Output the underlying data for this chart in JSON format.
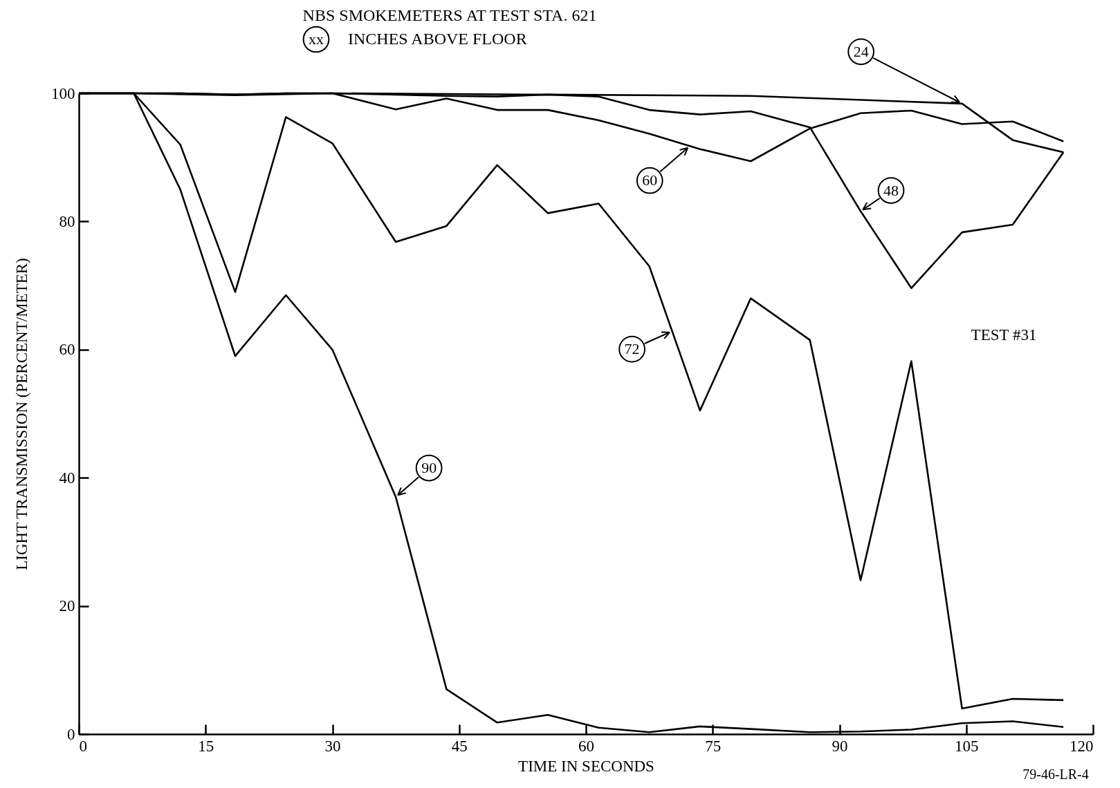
{
  "chart_data": {
    "type": "line",
    "title": "NBS SMOKEMETERS AT TEST STA. 621",
    "subtitle": "INCHES ABOVE FLOOR",
    "legend_title": "xx",
    "xlabel": "TIME IN SECONDS",
    "ylabel": "LIGHT TRANSMISSION  (PERCENT/METER)",
    "x": [
      0,
      6.5,
      12,
      18.5,
      24.5,
      30,
      37.5,
      43.5,
      49.5,
      55.5,
      61.5,
      67.5,
      73.5,
      79.5,
      86.5,
      92.5,
      98.5,
      104.5,
      110.5,
      116.5
    ],
    "series": [
      {
        "name": "24",
        "color": "#000000",
        "x": [
          0,
          6.5,
          18.5,
          30,
          55.5,
          79.5,
          104.5,
          110.5,
          116.5
        ],
        "values": [
          100,
          100,
          99.7,
          100,
          99.8,
          99.6,
          98.4,
          92.7,
          90.8
        ]
      },
      {
        "name": "48",
        "color": "#000000",
        "values": [
          100,
          100,
          100,
          99.8,
          100,
          100,
          99.8,
          99.6,
          99.5,
          99.8,
          99.5,
          97.4,
          96.7,
          97.2,
          94.7,
          81.6,
          69.6,
          78.3,
          79.5,
          90.8
        ]
      },
      {
        "name": "60",
        "color": "#000000",
        "values": [
          100,
          100,
          100,
          99.8,
          100,
          100,
          97.5,
          99.2,
          97.4,
          97.4,
          95.8,
          93.7,
          91.3,
          89.4,
          94.5,
          96.9,
          97.3,
          95.2,
          95.6,
          92.5
        ]
      },
      {
        "name": "72",
        "color": "#000000",
        "values": [
          100,
          100,
          92,
          69,
          96.3,
          92.2,
          76.8,
          79.3,
          88.8,
          81.3,
          82.8,
          73,
          50.5,
          68,
          61.5,
          24,
          58.2,
          4,
          5.5,
          5.3
        ]
      },
      {
        "name": "90",
        "color": "#000000",
        "values": [
          100,
          100,
          85,
          59,
          68.5,
          60,
          37,
          7,
          1.8,
          3,
          1,
          0.3,
          1.2,
          0.8,
          0.3,
          0.4,
          0.7,
          1.7,
          2,
          1.1
        ]
      }
    ],
    "xlim": [
      0,
      120
    ],
    "xticks": [
      0,
      15,
      30,
      45,
      60,
      75,
      90,
      105,
      120
    ],
    "ylim": [
      0,
      100
    ],
    "yticks": [
      0,
      20,
      40,
      60,
      80,
      100
    ],
    "grid": false,
    "legend": false,
    "marker": "none",
    "line_style": "solid",
    "annotations": [
      "TEST #31",
      "79-46-LR-4"
    ]
  }
}
